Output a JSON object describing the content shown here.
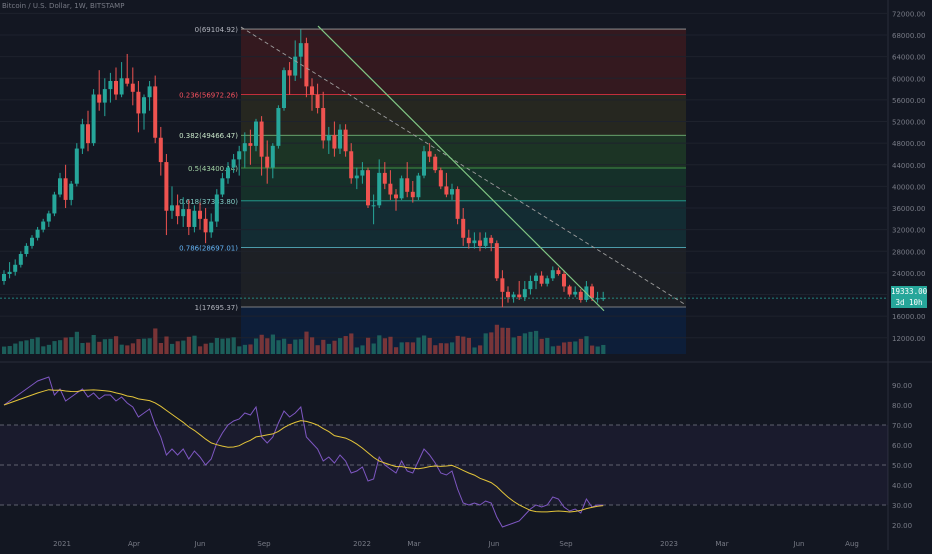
{
  "header": {
    "symbol": "Bitcoin / U.S. Dollar, 1W, BITSTAMP"
  },
  "price_tag": {
    "price": "19333.00",
    "countdown": "3d 10h"
  },
  "colors": {
    "bg": "#131722",
    "up": "#26a69a",
    "down": "#ef5350",
    "rsi": "#7e57c2",
    "rsi_ma": "#e3c43a",
    "trend": "#81c784"
  },
  "chart_data": [
    {
      "type": "candlestick",
      "title": "Bitcoin / U.S. Dollar, 1W, BITSTAMP",
      "price_axis": {
        "ticks": [
          "72000.00",
          "68000.00",
          "64000.00",
          "60000.00",
          "56000.00",
          "52000.00",
          "48000.00",
          "44000.00",
          "40000.00",
          "36000.00",
          "32000.00",
          "28000.00",
          "24000.00",
          "20000.00",
          "16000.00",
          "12000.00"
        ],
        "range": [
          9000,
          73000
        ]
      },
      "time_axis": {
        "ticks": [
          "2021",
          "Apr",
          "Jun",
          "Sep",
          "2022",
          "Mar",
          "Jun",
          "Sep",
          "2023",
          "Mar",
          "Jun",
          "Aug"
        ]
      },
      "fibonacci": [
        {
          "label": "0(69104.92)",
          "level": 0,
          "price": 69104.92
        },
        {
          "label": "0.236(56972.26)",
          "level": 0.236,
          "price": 56972.26
        },
        {
          "label": "0.382(49466.47)",
          "level": 0.382,
          "price": 49466.47
        },
        {
          "label": "0.5(43400.14)",
          "level": 0.5,
          "price": 43400.14
        },
        {
          "label": "0.618(37333.80)",
          "level": 0.618,
          "price": 37333.8
        },
        {
          "label": "0.786(28697.01)",
          "level": 0.786,
          "price": 28697.01
        },
        {
          "label": "1(17695.37)",
          "level": 1,
          "price": 17695.37
        }
      ],
      "candles_ohlc": [
        [
          22500,
          24500,
          21800,
          23800
        ],
        [
          23800,
          26000,
          23000,
          24200
        ],
        [
          24200,
          26500,
          23500,
          25500
        ],
        [
          25500,
          28000,
          25000,
          27500
        ],
        [
          27500,
          29500,
          27000,
          29000
        ],
        [
          29000,
          31000,
          28500,
          30500
        ],
        [
          30500,
          32500,
          30000,
          32000
        ],
        [
          32000,
          34000,
          31500,
          33500
        ],
        [
          33500,
          35500,
          32500,
          35000
        ],
        [
          35000,
          39000,
          34500,
          38500
        ],
        [
          38500,
          42500,
          38000,
          41500
        ],
        [
          41500,
          44000,
          36000,
          37500
        ],
        [
          37500,
          41000,
          36500,
          40500
        ],
        [
          40500,
          48000,
          40000,
          47000
        ],
        [
          47000,
          52500,
          46000,
          51500
        ],
        [
          51500,
          54000,
          46500,
          48000
        ],
        [
          48000,
          58000,
          47500,
          57000
        ],
        [
          57000,
          61500,
          54000,
          55500
        ],
        [
          55500,
          60000,
          53000,
          58000
        ],
        [
          58000,
          61000,
          55500,
          59500
        ],
        [
          59500,
          62000,
          56000,
          57000
        ],
        [
          57000,
          63000,
          56500,
          60000
        ],
        [
          60000,
          64500,
          58500,
          59000
        ],
        [
          59000,
          62000,
          55000,
          57500
        ],
        [
          57500,
          59500,
          50000,
          53500
        ],
        [
          53500,
          57000,
          50500,
          56500
        ],
        [
          56500,
          59500,
          54000,
          58500
        ],
        [
          58500,
          60500,
          48000,
          49000
        ],
        [
          49000,
          51000,
          42000,
          44500
        ],
        [
          44500,
          46000,
          31000,
          35500
        ],
        [
          35500,
          40000,
          34000,
          36500
        ],
        [
          36500,
          38500,
          33000,
          34500
        ],
        [
          34500,
          38000,
          32500,
          35800
        ],
        [
          35800,
          37500,
          31000,
          32500
        ],
        [
          32500,
          36500,
          31500,
          35500
        ],
        [
          35500,
          37000,
          32000,
          34000
        ],
        [
          34000,
          36000,
          29500,
          31500
        ],
        [
          31500,
          35000,
          30500,
          33500
        ],
        [
          33500,
          39500,
          32500,
          38500
        ],
        [
          38500,
          42500,
          38000,
          41500
        ],
        [
          41500,
          44500,
          40500,
          43500
        ],
        [
          43500,
          46000,
          42500,
          45000
        ],
        [
          45000,
          47500,
          42000,
          46500
        ],
        [
          46500,
          50000,
          43500,
          48000
        ],
        [
          48000,
          50500,
          44000,
          47500
        ],
        [
          47500,
          52500,
          46500,
          52000
        ],
        [
          52000,
          53000,
          42000,
          45500
        ],
        [
          45500,
          48500,
          40500,
          43500
        ],
        [
          43500,
          48000,
          41500,
          47500
        ],
        [
          47500,
          55000,
          47000,
          54500
        ],
        [
          54500,
          62000,
          54000,
          61500
        ],
        [
          61500,
          63000,
          57000,
          60500
        ],
        [
          60500,
          67000,
          59500,
          64000
        ],
        [
          64000,
          69000,
          60000,
          66500
        ],
        [
          66500,
          67500,
          56500,
          58500
        ],
        [
          58500,
          60000,
          54000,
          57000
        ],
        [
          57000,
          59000,
          53500,
          54500
        ],
        [
          54500,
          57500,
          47000,
          48500
        ],
        [
          48500,
          51000,
          46000,
          49500
        ],
        [
          49500,
          52000,
          45500,
          47000
        ],
        [
          47000,
          51500,
          46000,
          50500
        ],
        [
          50500,
          51500,
          45500,
          46500
        ],
        [
          46500,
          48000,
          40500,
          41500
        ],
        [
          41500,
          43500,
          39500,
          42000
        ],
        [
          42000,
          44500,
          40500,
          43000
        ],
        [
          43000,
          43500,
          36000,
          36500
        ],
        [
          36500,
          38500,
          33000,
          36500
        ],
        [
          36500,
          45000,
          36000,
          42500
        ],
        [
          42500,
          44500,
          39500,
          40500
        ],
        [
          40500,
          43000,
          37500,
          38500
        ],
        [
          38500,
          39500,
          35500,
          37800
        ],
        [
          37800,
          42000,
          37500,
          41500
        ],
        [
          41500,
          44500,
          38000,
          39000
        ],
        [
          39000,
          41000,
          37000,
          38000
        ],
        [
          38000,
          42500,
          37500,
          42000
        ],
        [
          42000,
          47500,
          41500,
          46500
        ],
        [
          46500,
          48000,
          44500,
          45500
        ],
        [
          45500,
          46000,
          42500,
          43000
        ],
        [
          43000,
          43500,
          39500,
          40000
        ],
        [
          40000,
          42500,
          38000,
          38500
        ],
        [
          38500,
          40500,
          37500,
          39500
        ],
        [
          39500,
          40000,
          33000,
          34000
        ],
        [
          34000,
          36000,
          29000,
          30500
        ],
        [
          30500,
          32000,
          28500,
          29500
        ],
        [
          29500,
          31500,
          28500,
          30000
        ],
        [
          30000,
          31500,
          28000,
          29000
        ],
        [
          29000,
          31500,
          28500,
          30500
        ],
        [
          30500,
          31000,
          28000,
          29500
        ],
        [
          29500,
          30000,
          22500,
          23000
        ],
        [
          23000,
          24500,
          17600,
          20500
        ],
        [
          20500,
          21500,
          18500,
          19500
        ],
        [
          19500,
          20500,
          18500,
          20000
        ],
        [
          20000,
          22500,
          19000,
          19500
        ],
        [
          19500,
          22500,
          18800,
          21000
        ],
        [
          21000,
          23500,
          20000,
          22500
        ],
        [
          22500,
          24000,
          21000,
          23500
        ],
        [
          23500,
          24300,
          21500,
          22000
        ],
        [
          22000,
          23500,
          21500,
          23000
        ],
        [
          23000,
          25200,
          22500,
          24500
        ],
        [
          24500,
          25000,
          23500,
          23800
        ],
        [
          23800,
          24500,
          20500,
          21500
        ],
        [
          21500,
          21800,
          19600,
          20000
        ],
        [
          20000,
          21500,
          19500,
          20500
        ],
        [
          20500,
          21000,
          18500,
          19000
        ],
        [
          19000,
          22500,
          18600,
          21500
        ],
        [
          21500,
          22000,
          18800,
          19300
        ],
        [
          19300,
          20500,
          18500,
          19300
        ],
        [
          19300,
          20500,
          18800,
          19333
        ]
      ],
      "rsi": [
        80,
        82,
        84,
        86,
        88,
        90,
        92,
        93,
        94,
        85,
        88,
        82,
        84,
        86,
        88,
        84,
        86,
        83,
        85,
        85,
        82,
        84,
        81,
        79,
        74,
        76,
        78,
        70,
        64,
        55,
        58,
        55,
        58,
        53,
        57,
        54,
        50,
        53,
        61,
        66,
        70,
        72,
        73,
        76,
        75,
        79,
        64,
        61,
        64,
        71,
        77,
        74,
        76,
        79,
        64,
        61,
        58,
        52,
        54,
        51,
        55,
        52,
        46,
        47,
        49,
        42,
        43,
        54,
        50,
        48,
        46,
        52,
        47,
        46,
        52,
        58,
        55,
        51,
        46,
        45,
        47,
        38,
        31,
        30,
        31,
        30,
        32,
        31,
        24,
        19,
        20,
        21,
        22,
        25,
        28,
        30,
        29,
        30,
        34,
        33,
        29,
        27,
        28,
        26,
        33,
        29,
        30,
        30
      ],
      "rsi_axis": {
        "ticks": [
          "90.00",
          "80.00",
          "70.00",
          "60.00",
          "50.00",
          "40.00",
          "30.00",
          "20.00"
        ],
        "bands": [
          70,
          50,
          30
        ]
      }
    }
  ]
}
